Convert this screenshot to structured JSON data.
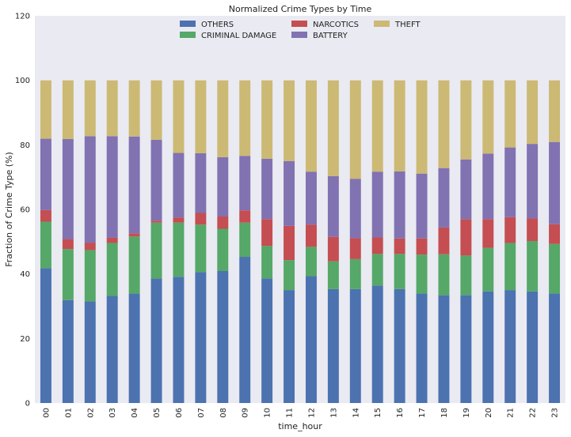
{
  "chart_data": {
    "type": "bar",
    "stacked": true,
    "title": "Normalized Crime Types by Time",
    "xlabel": "time_hour",
    "ylabel": "Fraction of Crime Type (%)",
    "ylim": [
      0,
      120
    ],
    "yticks": [
      0,
      20,
      40,
      60,
      80,
      100,
      120
    ],
    "grid": false,
    "legend_position": "top-center",
    "categories": [
      "00",
      "01",
      "02",
      "03",
      "04",
      "05",
      "06",
      "07",
      "08",
      "09",
      "10",
      "11",
      "12",
      "13",
      "14",
      "15",
      "16",
      "17",
      "18",
      "19",
      "20",
      "21",
      "22",
      "23"
    ],
    "series": [
      {
        "name": "OTHERS",
        "color": "#4c72b0",
        "values": [
          41.8,
          31.9,
          31.5,
          33.2,
          33.9,
          38.6,
          39.1,
          40.6,
          40.9,
          45.3,
          38.6,
          35.0,
          39.3,
          35.3,
          35.3,
          36.4,
          35.3,
          33.9,
          33.4,
          33.4,
          34.6,
          35.0,
          34.6,
          33.9
        ]
      },
      {
        "name": "CRIMINAL DAMAGE",
        "color": "#55a868",
        "values": [
          14.4,
          15.8,
          15.9,
          16.4,
          17.7,
          17.3,
          16.8,
          14.7,
          13.1,
          10.6,
          10.1,
          9.3,
          9.1,
          8.6,
          9.3,
          9.8,
          10.9,
          12.1,
          12.7,
          12.3,
          13.5,
          14.6,
          15.6,
          15.4
        ]
      },
      {
        "name": "NARCOTICS",
        "color": "#c44e52",
        "values": [
          3.6,
          3.1,
          2.3,
          1.6,
          1.0,
          0.6,
          1.6,
          3.6,
          3.8,
          3.8,
          8.3,
          10.6,
          6.9,
          7.6,
          6.5,
          5.1,
          4.8,
          5.0,
          8.3,
          11.3,
          8.9,
          8.0,
          7.0,
          6.1
        ]
      },
      {
        "name": "BATTERY",
        "color": "#8172b2",
        "values": [
          22.1,
          31.0,
          33.0,
          31.5,
          30.0,
          25.1,
          20.0,
          18.5,
          18.4,
          16.9,
          18.7,
          20.1,
          16.4,
          18.8,
          18.4,
          20.4,
          20.8,
          20.1,
          18.4,
          18.5,
          20.3,
          21.6,
          23.1,
          25.5
        ]
      },
      {
        "name": "THEFT",
        "color": "#ccb974",
        "values": [
          18.1,
          18.2,
          17.3,
          17.3,
          17.4,
          18.4,
          22.5,
          22.6,
          23.8,
          23.4,
          24.3,
          25.0,
          28.3,
          29.7,
          30.5,
          28.3,
          28.2,
          28.9,
          27.2,
          24.5,
          22.7,
          20.8,
          19.7,
          19.1
        ]
      }
    ]
  }
}
